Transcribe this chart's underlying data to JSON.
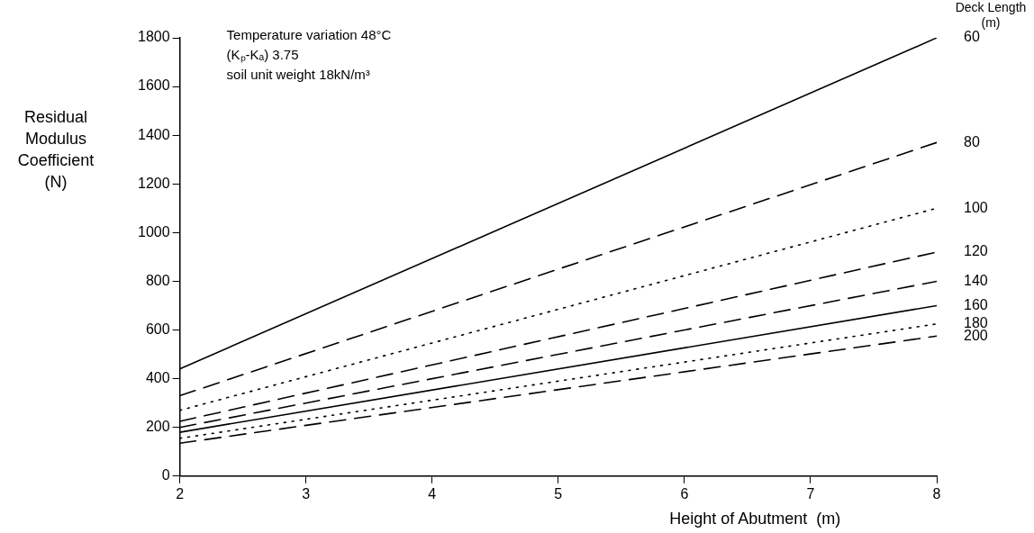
{
  "chart_data": {
    "type": "line",
    "xlabel": "Height of Abutment  (m)",
    "ylabel": "Residual Modulus Coefficient (N)",
    "legend_title": "Deck Length (m)",
    "annotations": [
      "Temperature variation 48°C",
      "(Kₚ-Kₐ) 3.75",
      "soil unit weight 18kN/m³"
    ],
    "x": [
      2,
      8
    ],
    "series": [
      {
        "name": "60",
        "color": "#000000",
        "line_style": "solid",
        "values": [
          440,
          1800
        ]
      },
      {
        "name": "80",
        "color": "#000000",
        "line_style": "dashed",
        "values": [
          330,
          1370
        ]
      },
      {
        "name": "100",
        "color": "#000000",
        "line_style": "dotted",
        "values": [
          270,
          1100
        ]
      },
      {
        "name": "120",
        "color": "#000000",
        "line_style": "dashed",
        "values": [
          225,
          920
        ]
      },
      {
        "name": "140",
        "color": "#000000",
        "line_style": "dashed",
        "values": [
          200,
          800
        ]
      },
      {
        "name": "160",
        "color": "#000000",
        "line_style": "solid",
        "values": [
          180,
          700
        ]
      },
      {
        "name": "180",
        "color": "#000000",
        "line_style": "dotted",
        "values": [
          155,
          625
        ]
      },
      {
        "name": "200",
        "color": "#000000",
        "line_style": "dashed",
        "values": [
          135,
          575
        ]
      }
    ],
    "xlim": [
      2,
      8
    ],
    "xticks": [
      2,
      3,
      4,
      5,
      6,
      7,
      8
    ],
    "ylim": [
      0,
      1800
    ],
    "yticks": [
      0,
      200,
      400,
      600,
      800,
      1000,
      1200,
      1400,
      1600,
      1800
    ],
    "grid": false,
    "legend": false,
    "marker": "none"
  }
}
